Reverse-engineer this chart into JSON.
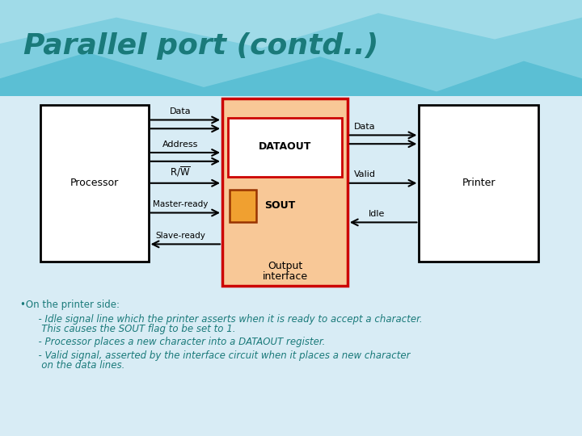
{
  "title": "Parallel port (contd..)",
  "title_color": "#1a7a7a",
  "bg_color": "#d8ecf5",
  "bg_top_color": "#5bbfd4",
  "processor_label": "Processor",
  "printer_label": "Printer",
  "dataout_label": "DATAOUT",
  "sout_label": "SOUT",
  "interface_label_line1": "Output",
  "interface_label_line2": "interface",
  "interface_fill": "#f8c897",
  "interface_border": "#cc0000",
  "dataout_fill": "#ffffff",
  "dataout_border": "#cc0000",
  "sout_sq_fill": "#f0a030",
  "sout_sq_border": "#993300",
  "text_color": "#1a7a7a",
  "bullet_lines": [
    "•On the printer side:",
    "      - Idle signal line which the printer asserts when it is ready to accept a character.",
    "       This causes the SOUT flag to be set to 1.",
    "      - Processor places a new character into a DATAOUT register.",
    "      - Valid signal, asserted by the interface circuit when it places a new character",
    "       on the data lines."
  ]
}
